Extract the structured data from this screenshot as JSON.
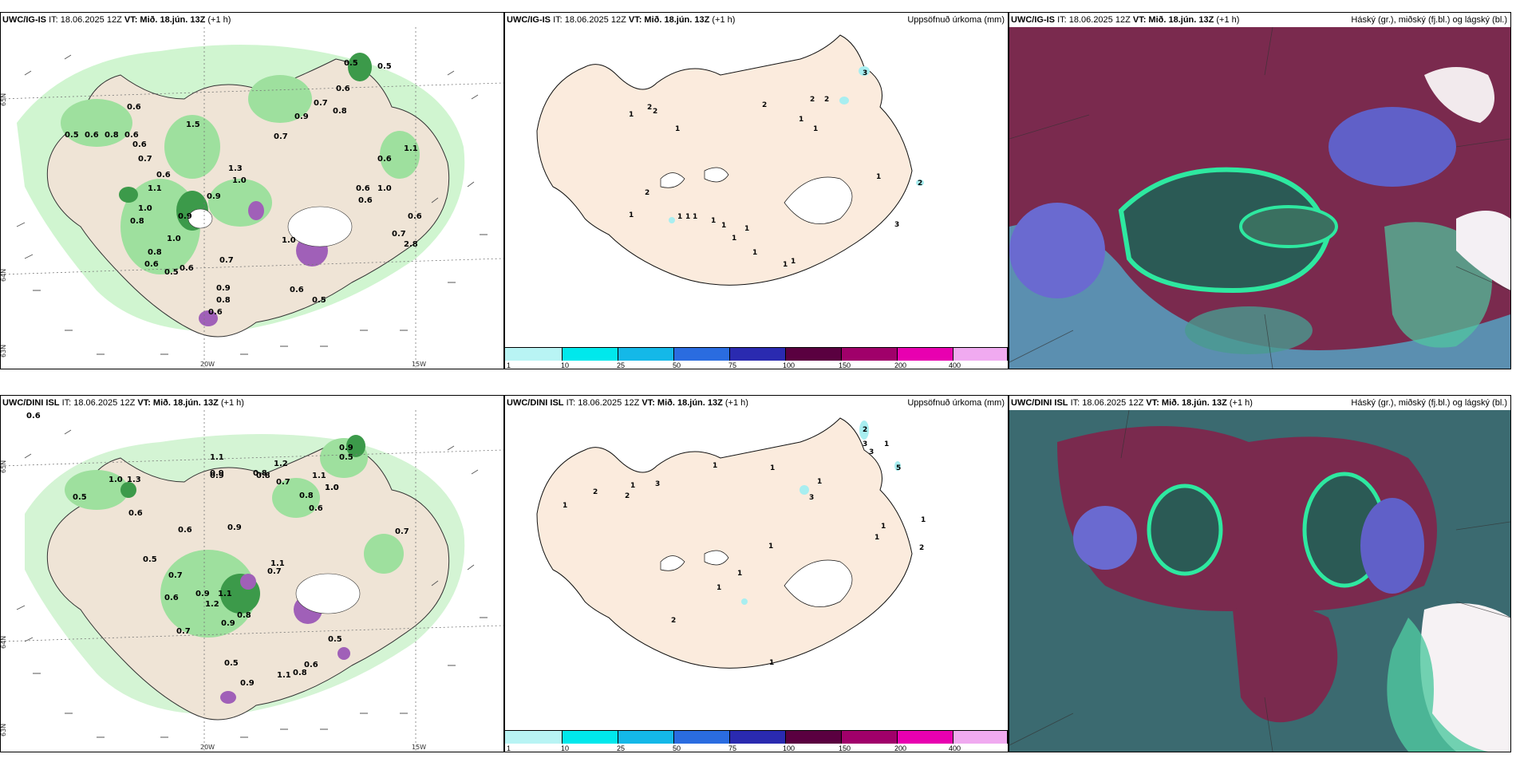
{
  "rows": [
    {
      "model": "UWC/IG-IS",
      "init": "IT: 18.06.2025 12Z",
      "valid_label": "VT:",
      "valid_time": "Mið. 18.jún. 13Z",
      "lead": "(+1 h)",
      "wind_lat_labels": [
        "65N",
        "64N",
        "63N"
      ],
      "wind_lon_labels": [
        "20W",
        "15W"
      ],
      "wind_values": [
        "0.5",
        "0.6",
        "0.6",
        "0.8",
        "0.6",
        "0.6",
        "0.7",
        "0.6",
        "1.1",
        "1.0",
        "0.8",
        "0.9",
        "1.0",
        "0.6",
        "0.5",
        "0.8",
        "0.7",
        "0.6",
        "0.9",
        "0.8",
        "0.6",
        "1.3",
        "0.9",
        "1.0",
        "1.5",
        "0.9",
        "0.5",
        "0.6",
        "0.7",
        "0.5",
        "0.8",
        "0.6",
        "0.6",
        "0.7",
        "1.1",
        "0.6",
        "1.0",
        "0.6",
        "1.0",
        "0.7",
        "2.8",
        "0.6",
        "0.5"
      ],
      "precip_values": [
        "1",
        "2",
        "2",
        "1",
        "2",
        "1",
        "1",
        "2",
        "2",
        "3",
        "1",
        "1",
        "2",
        "1",
        "1",
        "1",
        "1",
        "1",
        "1",
        "1",
        "1",
        "1",
        "1",
        "3",
        "2"
      ]
    },
    {
      "model": "UWC/DINI ISL",
      "init": "IT: 18.06.2025 12Z",
      "valid_label": "VT:",
      "valid_time": "Mið. 18.jún. 13Z",
      "lead": "(+1 h)",
      "wind_lat_labels": [
        "65N",
        "64N",
        "63N"
      ],
      "wind_lon_labels": [
        "20W",
        "15W"
      ],
      "wind_values": [
        "0.6",
        "0.5",
        "1.0",
        "1.3",
        "0.9",
        "0.8",
        "0.5",
        "0.6",
        "1.1",
        "0.9",
        "0.8",
        "0.7",
        "1.2",
        "1.1",
        "1.0",
        "0.9",
        "0.5",
        "0.8",
        "0.6",
        "0.9",
        "0.7",
        "0.9",
        "1.1",
        "1.2",
        "0.6",
        "0.7",
        "0.9",
        "0.8",
        "0.7",
        "1.1",
        "0.7",
        "0.5",
        "0.6",
        "0.5",
        "0.8",
        "0.9",
        "1.1",
        "1.0",
        "0.6"
      ],
      "precip_values": [
        "1",
        "2",
        "2",
        "1",
        "3",
        "1",
        "1",
        "1",
        "3",
        "1",
        "1",
        "1",
        "2",
        "1",
        "1",
        "1",
        "2",
        "1",
        "2",
        "3",
        "3",
        "5",
        "1"
      ]
    }
  ],
  "precip_title": "Uppsöfnuð úrkoma (mm)",
  "cloud_title": "Háský (gr.), miðský (fj.bl.) og lágský (bl.)",
  "colorbar": {
    "ticks": [
      "1",
      "10",
      "25",
      "50",
      "75",
      "100",
      "150",
      "200",
      "400"
    ],
    "colors": [
      "#b8f4f4",
      "#00e8ec",
      "#14b8e8",
      "#2a6ce0",
      "#2a2ab0",
      "#5a0040",
      "#a0006a",
      "#e800b0",
      "#f0aaf0"
    ]
  }
}
